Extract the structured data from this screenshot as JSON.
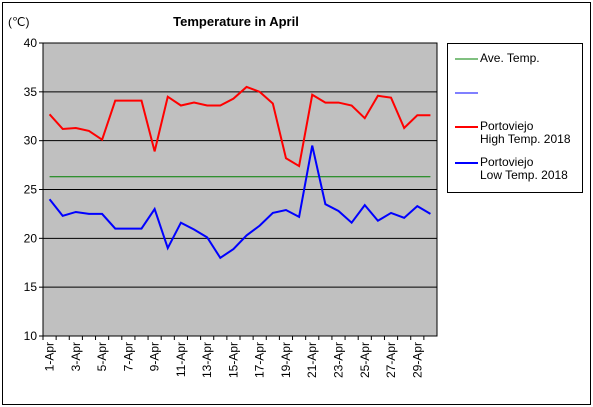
{
  "chart_data": {
    "type": "line",
    "title": "Temperature in April",
    "y_label": "(℃)",
    "categories": [
      "1-Apr",
      null,
      "3-Apr",
      null,
      "5-Apr",
      null,
      "7-Apr",
      null,
      "9-Apr",
      null,
      "11-Apr",
      null,
      "13-Apr",
      null,
      "15-Apr",
      null,
      "17-Apr",
      null,
      "19-Apr",
      null,
      "21-Apr",
      null,
      "23-Apr",
      null,
      "25-Apr",
      null,
      "27-Apr",
      null,
      "29-Apr",
      null
    ],
    "series": [
      {
        "name": "Ave. Temp.",
        "color": "#008000",
        "values": [
          26.3,
          26.3,
          26.3,
          26.3,
          26.3,
          26.3,
          26.3,
          26.3,
          26.3,
          26.3,
          26.3,
          26.3,
          26.3,
          26.3,
          26.3,
          26.3,
          26.3,
          26.3,
          26.3,
          26.3,
          26.3,
          26.3,
          26.3,
          26.3,
          26.3,
          26.3,
          26.3,
          26.3,
          26.3,
          26.3
        ]
      },
      {
        "name": "Portoviejo\nHigh Temp. 2018",
        "color": "#ff0000",
        "values": [
          32.7,
          31.2,
          31.3,
          31.0,
          30.1,
          34.1,
          34.1,
          34.1,
          28.9,
          34.5,
          33.6,
          33.9,
          33.6,
          33.6,
          34.3,
          35.5,
          35.0,
          33.8,
          28.2,
          27.4,
          34.7,
          33.9,
          33.9,
          33.6,
          32.3,
          34.6,
          34.4,
          31.3,
          32.6,
          32.6
        ]
      },
      {
        "name": "Portoviejo\nLow Temp. 2018",
        "color": "#0000ff",
        "values": [
          24.0,
          22.3,
          22.7,
          22.5,
          22.5,
          21.0,
          21.0,
          21.0,
          23.0,
          19.0,
          21.6,
          20.9,
          20.1,
          18.0,
          18.9,
          20.3,
          21.3,
          22.6,
          22.9,
          22.2,
          29.5,
          23.5,
          22.8,
          21.6,
          23.4,
          21.8,
          22.6,
          22.1,
          23.3,
          22.5
        ]
      }
    ],
    "ylim": [
      10,
      40
    ],
    "yticks": [
      10,
      15,
      20,
      25,
      30,
      35,
      40
    ],
    "grid": true,
    "plot_background": "#c0c0c0"
  }
}
